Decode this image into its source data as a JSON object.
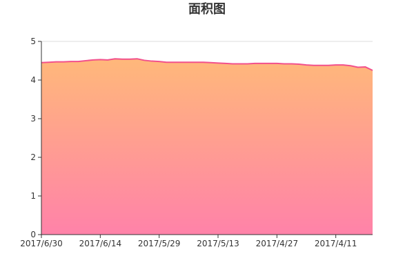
{
  "chart_data": {
    "type": "area",
    "title": "面积图",
    "xlabel": "",
    "ylabel": "",
    "x_axis": "reversed dates (newest on the left)",
    "ylim": [
      0,
      5
    ],
    "yticks": [
      0,
      1,
      2,
      3,
      4,
      5
    ],
    "xtick_labels": [
      "2017/6/30",
      "2017/6/14",
      "2017/5/29",
      "2017/5/13",
      "2017/4/27",
      "2017/4/11"
    ],
    "grid": "horizontal",
    "legend": "none",
    "colors": {
      "line": "#f2508c",
      "fill_top": "#ffb87a",
      "fill_bottom": "#ff82a9",
      "grid": "#dddddd",
      "axis": "#333333"
    },
    "series": [
      {
        "points": [
          [
            "2017/6/30",
            4.45
          ],
          [
            "2017/6/28",
            4.46
          ],
          [
            "2017/6/26",
            4.47
          ],
          [
            "2017/6/24",
            4.47
          ],
          [
            "2017/6/22",
            4.48
          ],
          [
            "2017/6/20",
            4.48
          ],
          [
            "2017/6/18",
            4.5
          ],
          [
            "2017/6/16",
            4.52
          ],
          [
            "2017/6/14",
            4.53
          ],
          [
            "2017/6/12",
            4.52
          ],
          [
            "2017/6/10",
            4.55
          ],
          [
            "2017/6/8",
            4.54
          ],
          [
            "2017/6/6",
            4.54
          ],
          [
            "2017/6/4",
            4.55
          ],
          [
            "2017/6/2",
            4.51
          ],
          [
            "2017/5/31",
            4.49
          ],
          [
            "2017/5/29",
            4.48
          ],
          [
            "2017/5/27",
            4.46
          ],
          [
            "2017/5/25",
            4.46
          ],
          [
            "2017/5/23",
            4.46
          ],
          [
            "2017/5/21",
            4.46
          ],
          [
            "2017/5/19",
            4.46
          ],
          [
            "2017/5/17",
            4.46
          ],
          [
            "2017/5/15",
            4.45
          ],
          [
            "2017/5/13",
            4.44
          ],
          [
            "2017/5/11",
            4.43
          ],
          [
            "2017/5/9",
            4.42
          ],
          [
            "2017/5/7",
            4.42
          ],
          [
            "2017/5/5",
            4.42
          ],
          [
            "2017/5/3",
            4.43
          ],
          [
            "2017/5/1",
            4.43
          ],
          [
            "2017/4/29",
            4.43
          ],
          [
            "2017/4/27",
            4.43
          ],
          [
            "2017/4/25",
            4.42
          ],
          [
            "2017/4/23",
            4.42
          ],
          [
            "2017/4/21",
            4.41
          ],
          [
            "2017/4/19",
            4.39
          ],
          [
            "2017/4/17",
            4.38
          ],
          [
            "2017/4/15",
            4.38
          ],
          [
            "2017/4/13",
            4.38
          ],
          [
            "2017/4/11",
            4.39
          ],
          [
            "2017/4/9",
            4.39
          ],
          [
            "2017/4/7",
            4.37
          ],
          [
            "2017/4/5",
            4.33
          ],
          [
            "2017/4/3",
            4.34
          ],
          [
            "2017/4/1",
            4.25
          ]
        ]
      }
    ]
  }
}
